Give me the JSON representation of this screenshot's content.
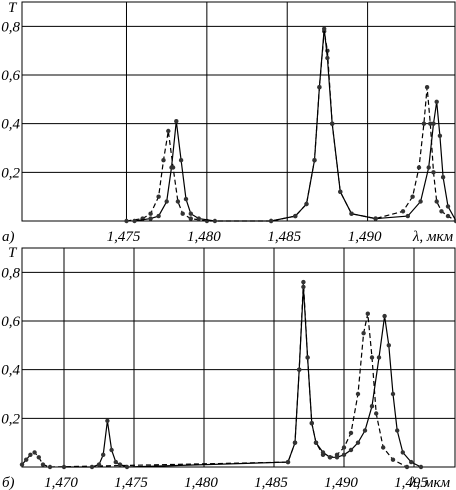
{
  "chart_data": [
    {
      "type": "line",
      "panel_label": "а)",
      "ylabel": "T",
      "xlabel": "λ, мкм",
      "xlim": [
        1.4685,
        1.4955
      ],
      "ylim": [
        0,
        0.9
      ],
      "xticks": [
        1.475,
        1.48,
        1.485,
        1.49
      ],
      "xtick_labels": [
        "1,475",
        "1,480",
        "1,485",
        "1,490"
      ],
      "yticks": [
        0.2,
        0.4,
        0.6,
        0.8
      ],
      "ytick_labels": [
        "0,2",
        "0,4",
        "0,6",
        "0,8"
      ],
      "grid": true,
      "series": [
        {
          "style": "dashed",
          "x": [
            1.475,
            1.476,
            1.4765,
            1.477,
            1.4773,
            1.4776,
            1.4779,
            1.4782,
            1.4785,
            1.479,
            1.48,
            1.484,
            1.4855,
            1.4862,
            1.4867,
            1.487,
            1.4873,
            1.4875,
            1.4878,
            1.4883,
            1.489,
            1.4905,
            1.4922,
            1.4928,
            1.4932,
            1.4935,
            1.4937,
            1.4939,
            1.4941,
            1.4943,
            1.4946,
            1.495,
            1.4955
          ],
          "y": [
            0,
            0.01,
            0.03,
            0.1,
            0.25,
            0.37,
            0.22,
            0.08,
            0.03,
            0.01,
            0,
            0,
            0.02,
            0.07,
            0.25,
            0.55,
            0.78,
            0.7,
            0.4,
            0.12,
            0.03,
            0.01,
            0.04,
            0.1,
            0.22,
            0.4,
            0.55,
            0.4,
            0.2,
            0.08,
            0.04,
            0.02,
            0
          ]
        },
        {
          "style": "solid",
          "x": [
            1.4755,
            1.4765,
            1.477,
            1.4775,
            1.4778,
            1.4781,
            1.4784,
            1.4787,
            1.479,
            1.4795,
            1.4805,
            1.484,
            1.4855,
            1.4862,
            1.4867,
            1.487,
            1.4873,
            1.4875,
            1.4878,
            1.4883,
            1.489,
            1.4905,
            1.4925,
            1.4933,
            1.4938,
            1.4941,
            1.4943,
            1.4945,
            1.4947,
            1.495,
            1.4955
          ],
          "y": [
            0,
            0.01,
            0.02,
            0.08,
            0.22,
            0.41,
            0.25,
            0.09,
            0.03,
            0.01,
            0,
            0,
            0.02,
            0.07,
            0.25,
            0.55,
            0.79,
            0.67,
            0.4,
            0.12,
            0.03,
            0.01,
            0.02,
            0.08,
            0.22,
            0.4,
            0.49,
            0.35,
            0.18,
            0.06,
            0
          ]
        }
      ]
    },
    {
      "type": "line",
      "panel_label": "б)",
      "ylabel": "T",
      "xlabel": "λ, мкм",
      "xlim": [
        1.467,
        1.498
      ],
      "ylim": [
        0,
        0.9
      ],
      "xticks": [
        1.47,
        1.475,
        1.48,
        1.485,
        1.49,
        1.495
      ],
      "xtick_labels": [
        "1,470",
        "1,475",
        "1,480",
        "1,485",
        "1,490",
        "1,495"
      ],
      "yticks": [
        0.2,
        0.4,
        0.6,
        0.8
      ],
      "ytick_labels": [
        "0,2",
        "0,4",
        "0,6",
        "0,8"
      ],
      "grid": true,
      "series": [
        {
          "style": "dashed",
          "x": [
            1.467,
            1.4673,
            1.4676,
            1.4679,
            1.4682,
            1.4685,
            1.469,
            1.486,
            1.4865,
            1.4868,
            1.4871,
            1.4874,
            1.4877,
            1.488,
            1.4885,
            1.489,
            1.4895,
            1.49,
            1.4905,
            1.491,
            1.4914,
            1.4917,
            1.492,
            1.4923,
            1.4928,
            1.4935,
            1.4945
          ],
          "y": [
            0.01,
            0.03,
            0.05,
            0.06,
            0.04,
            0.01,
            0,
            0.02,
            0.1,
            0.4,
            0.76,
            0.45,
            0.18,
            0.1,
            0.05,
            0.04,
            0.05,
            0.08,
            0.14,
            0.3,
            0.55,
            0.63,
            0.45,
            0.22,
            0.08,
            0.03,
            0
          ]
        },
        {
          "style": "solid",
          "x": [
            1.47,
            1.472,
            1.4725,
            1.4728,
            1.4731,
            1.4734,
            1.4737,
            1.474,
            1.4745,
            1.486,
            1.4865,
            1.4868,
            1.4871,
            1.4874,
            1.4877,
            1.488,
            1.4885,
            1.489,
            1.4895,
            1.49,
            1.4905,
            1.491,
            1.4915,
            1.492,
            1.4925,
            1.4929,
            1.4932,
            1.4935,
            1.4938,
            1.4942,
            1.4948,
            1.4955
          ],
          "y": [
            0,
            0,
            0.01,
            0.05,
            0.19,
            0.07,
            0.02,
            0.01,
            0,
            0.02,
            0.1,
            0.4,
            0.74,
            0.45,
            0.18,
            0.1,
            0.06,
            0.04,
            0.04,
            0.05,
            0.07,
            0.1,
            0.15,
            0.25,
            0.45,
            0.62,
            0.5,
            0.3,
            0.15,
            0.06,
            0.02,
            0
          ]
        }
      ]
    }
  ]
}
